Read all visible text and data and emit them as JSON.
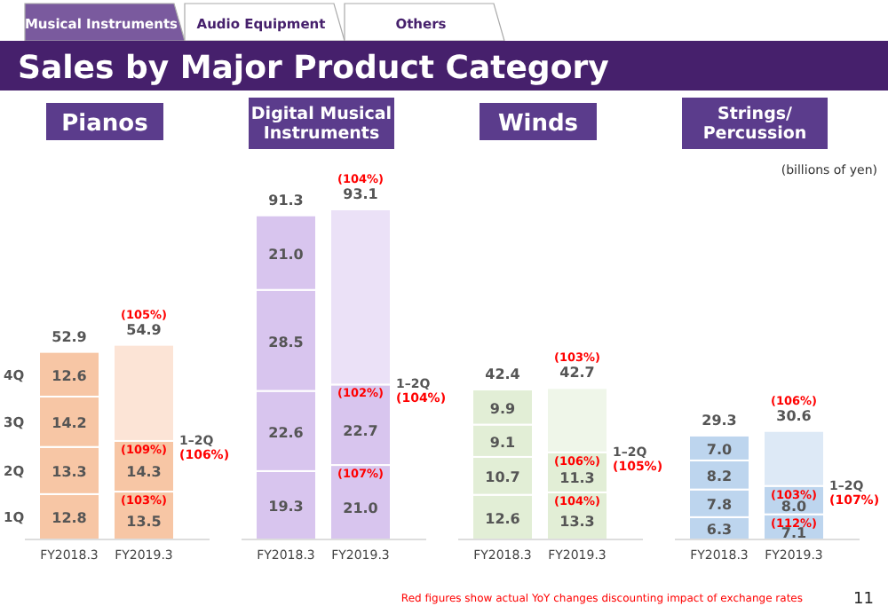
{
  "chart_data": [
    {
      "type": "bar",
      "title": "Pianos",
      "stacked": true,
      "legend": "left",
      "categories": [
        "FY2018.3",
        "FY2019.3"
      ],
      "totals": [
        "52.9",
        "54.9"
      ],
      "annotations": [
        "Musical Instruments",
        "Audio Equipment",
        "Others",
        "Sales by Major Product Category",
        {
          "text": "(105%)",
          "x": "FY2019.3",
          "y": 54.9
        },
        {
          "text": "(109%)",
          "x": "FY2019.3",
          "y": 27.8
        },
        {
          "text": "(103%)",
          "x": "FY2019.3",
          "y": 13.5
        },
        "1–2Q\n(106%)"
      ],
      "series": [
        {
          "name": "1Q",
          "color": "#f7c6a5",
          "values": [
            12.8,
            13.5
          ],
          "value_labels": [
            "12.8",
            "13.5"
          ]
        },
        {
          "name": "2Q",
          "color": "#f7c6a5",
          "values": [
            13.3,
            14.3
          ],
          "value_labels": [
            "13.3",
            "14.3"
          ]
        },
        {
          "name": "3Q",
          "color": "#f7c6a5",
          "values": [
            14.2,
            null
          ],
          "value_labels": [
            "14.2",
            null
          ]
        },
        {
          "name": "4Q",
          "color": "#f7c6a5",
          "values": [
            12.6,
            null
          ],
          "value_labels": [
            "12.6",
            null
          ]
        },
        {
          "color": "#fce4d6",
          "values": [
            null,
            27.1
          ],
          "value_labels": [
            null,
            null
          ]
        }
      ]
    },
    {
      "type": "bar",
      "title": "Digital Musical\nInstruments",
      "stacked": true,
      "categories": [
        "FY2018.3",
        "FY2019.3"
      ],
      "totals": [
        "91.3",
        "93.1"
      ],
      "annotations": [
        {
          "text": "(104%)",
          "x": "FY2019.3",
          "y": 93.1
        },
        {
          "text": "(102%)",
          "x": "FY2019.3",
          "y": 43.7
        },
        {
          "text": "(107%)",
          "x": "FY2019.3",
          "y": 21.0
        },
        "1–2Q\n(104%)"
      ],
      "series": [
        {
          "color": "#d8c5ee",
          "values": [
            19.3,
            21.0
          ],
          "value_labels": [
            "19.3",
            "21.0"
          ]
        },
        {
          "color": "#d8c5ee",
          "values": [
            22.6,
            22.7
          ],
          "value_labels": [
            "22.6",
            "22.7"
          ]
        },
        {
          "color": "#d8c5ee",
          "values": [
            28.5,
            null
          ],
          "value_labels": [
            "28.5",
            null
          ]
        },
        {
          "color": "#d8c5ee",
          "values": [
            21.0,
            null
          ],
          "value_labels": [
            "21.0",
            null
          ]
        },
        {
          "color": "#ebe1f7",
          "values": [
            null,
            49.4
          ],
          "value_labels": [
            null,
            null
          ]
        }
      ]
    },
    {
      "type": "bar",
      "title": "Winds",
      "stacked": true,
      "categories": [
        "FY2018.3",
        "FY2019.3"
      ],
      "totals": [
        "42.4",
        "42.7"
      ],
      "annotations": [
        {
          "text": "(103%)",
          "x": "FY2019.3",
          "y": 42.7
        },
        {
          "text": "(106%)",
          "x": "FY2019.3",
          "y": 24.6
        },
        {
          "text": "(104%)",
          "x": "FY2019.3",
          "y": 13.3
        },
        "1–2Q\n(105%)"
      ],
      "series": [
        {
          "color": "#e2eed6",
          "values": [
            12.6,
            13.3
          ],
          "value_labels": [
            "12.6",
            "13.3"
          ]
        },
        {
          "color": "#e2eed6",
          "values": [
            10.7,
            11.3
          ],
          "value_labels": [
            "10.7",
            "11.3"
          ]
        },
        {
          "color": "#e2eed6",
          "values": [
            9.1,
            null
          ],
          "value_labels": [
            "9.1",
            null
          ]
        },
        {
          "color": "#e2eed6",
          "values": [
            9.9,
            null
          ],
          "value_labels": [
            "9.9",
            null
          ]
        },
        {
          "color": "#eff6e9",
          "values": [
            null,
            18.1
          ],
          "value_labels": [
            null,
            null
          ]
        }
      ]
    },
    {
      "type": "bar",
      "title": "Strings/\nPercussion",
      "stacked": true,
      "categories": [
        "FY2018.3",
        "FY2019.3"
      ],
      "totals": [
        "29.3",
        "30.6"
      ],
      "annotations": [
        "(billions of yen)",
        "Red figures show actual YoY changes discounting impact of exchange rates",
        "11",
        {
          "text": "(106%)",
          "x": "FY2019.3",
          "y": 30.6
        },
        {
          "text": "(103%)",
          "x": "FY2019.3",
          "y": 15.1
        },
        {
          "text": "(112%)",
          "x": "FY2019.3",
          "y": 7.1
        },
        "1–2Q\n(107%)"
      ],
      "series": [
        {
          "color": "#bdd5ee",
          "values": [
            6.3,
            7.1
          ],
          "value_labels": [
            "6.3",
            "7.1"
          ]
        },
        {
          "color": "#bdd5ee",
          "values": [
            7.8,
            8.0
          ],
          "value_labels": [
            "7.8",
            "8.0"
          ]
        },
        {
          "color": "#bdd5ee",
          "values": [
            8.2,
            null
          ],
          "value_labels": [
            "8.2",
            null
          ]
        },
        {
          "color": "#bdd5ee",
          "values": [
            7.0,
            null
          ],
          "value_labels": [
            "7.0",
            null
          ]
        },
        {
          "color": "#dde9f6",
          "values": [
            null,
            15.5
          ],
          "value_labels": [
            null,
            null
          ]
        }
      ]
    }
  ]
}
